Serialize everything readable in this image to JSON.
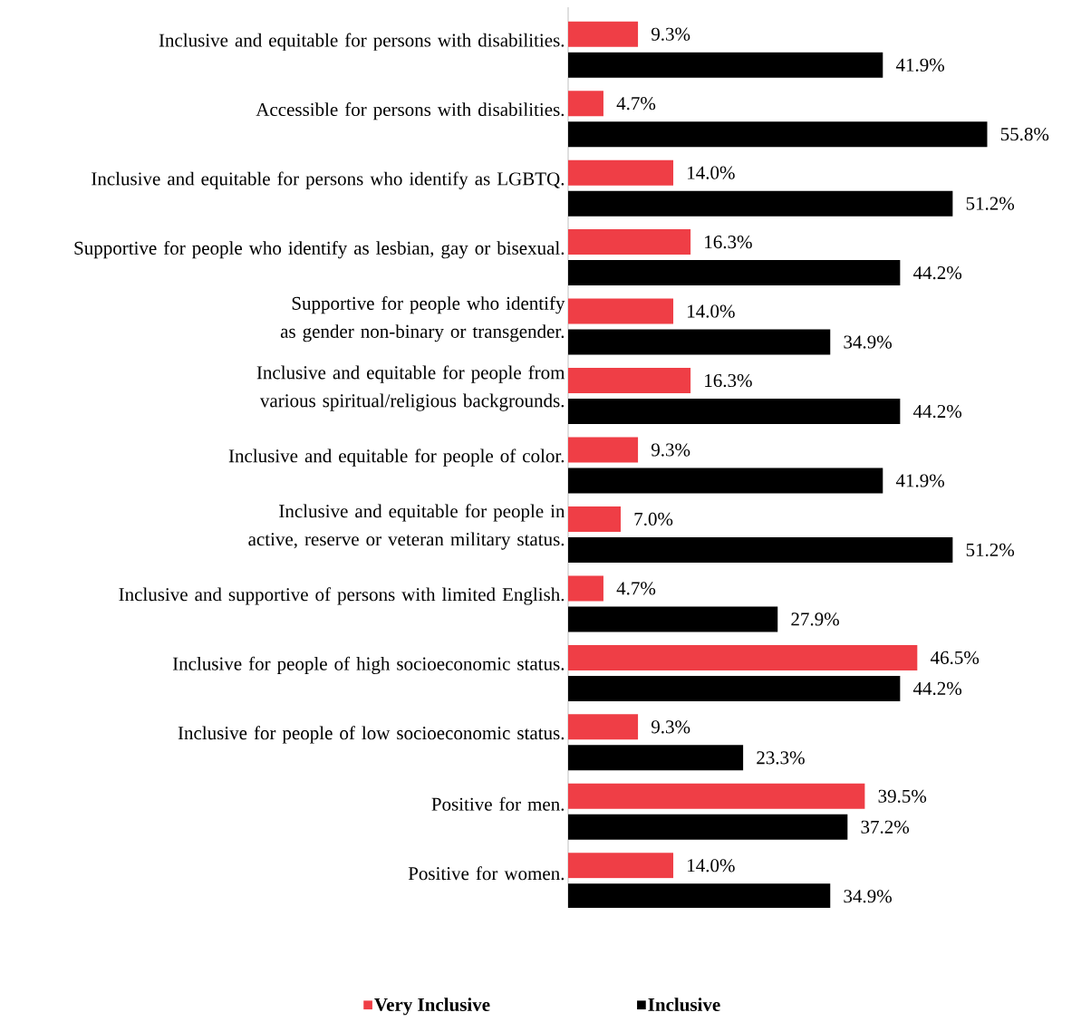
{
  "chart_data": {
    "type": "bar",
    "orientation": "horizontal",
    "legend": "bottom",
    "categories": [
      "Inclusive and equitable for persons with disabilities.",
      "Accessible for persons with disabilities.",
      "Inclusive and equitable for persons who identify as LGBTQ.",
      "Supportive for people who identify as lesbian, gay or bisexual.",
      "Supportive for people who identify as gender non-binary or transgender.",
      "Inclusive and equitable for people from various spiritual/religious backgrounds.",
      "Inclusive and equitable for people of color.",
      "Inclusive and equitable for people in active, reserve or veteran military status.",
      "Inclusive and supportive of persons with limited English.",
      "Inclusive for people of high socioeconomic status.",
      "Inclusive for people of low socioeconomic status.",
      "Positive for men.",
      "Positive for women."
    ],
    "series": [
      {
        "name": "Very Inclusive",
        "color": "#ef3e46",
        "values": [
          9.3,
          4.7,
          14.0,
          16.3,
          14.0,
          16.3,
          9.3,
          7.0,
          4.7,
          46.5,
          9.3,
          39.5,
          14.0
        ],
        "value_labels": [
          "9.3%",
          "4.7%",
          "14.0%",
          "16.3%",
          "14.0%",
          "16.3%",
          "9.3%",
          "7.0%",
          "4.7%",
          "46.5%",
          "9.3%",
          "39.5%",
          "14.0%"
        ]
      },
      {
        "name": "Inclusive",
        "color": "#000000",
        "values": [
          41.9,
          55.8,
          51.2,
          44.2,
          34.9,
          44.2,
          41.9,
          51.2,
          27.9,
          44.2,
          23.3,
          37.2,
          34.9
        ],
        "value_labels": [
          "41.9%",
          "55.8%",
          "51.2%",
          "44.2%",
          "34.9%",
          "44.2%",
          "41.9%",
          "51.2%",
          "27.9%",
          "44.2%",
          "23.3%",
          "37.2%",
          "34.9%"
        ]
      }
    ]
  }
}
